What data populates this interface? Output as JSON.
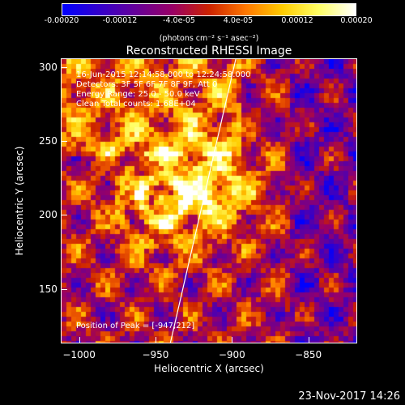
{
  "colorbar": {
    "ticks": [
      "-0.00020",
      "-0.00012",
      "-4.0e-05",
      "4.0e-05",
      "0.00012",
      "0.00020"
    ],
    "units": "(photons cm⁻² s⁻¹ asec⁻²)",
    "colors": [
      "#0000ff",
      "#3300cc",
      "#660099",
      "#990066",
      "#cc2200",
      "#ff7700",
      "#ffcc00",
      "#ffff66",
      "#ffffff"
    ]
  },
  "annotations": {
    "time": "16-Jun-2015 12:14:58.000 to 12:24:58.000",
    "detectors": "Detectors: 3F 5F 6F 7F 8F 9F, Att 0",
    "energy": "Energy Range: 25.0 - 50.0 keV",
    "method": "Clean     Total counts: 1.68E+04",
    "peak": "Position of Peak = [-947,212]"
  },
  "footer": {
    "date": "23-Nov-2017 14:26"
  },
  "chart_data": {
    "type": "heatmap",
    "title": "Reconstructed RHESSI Image",
    "xlabel": "Heliocentric X (arcsec)",
    "ylabel": "Heliocentric Y (arcsec)",
    "xlim": [
      -1012,
      -818
    ],
    "ylim": [
      113,
      306
    ],
    "xticks": [
      -1000,
      -950,
      -900,
      -850
    ],
    "xtick_labels": [
      "−1000",
      "−950",
      "−900",
      "−850"
    ],
    "yticks": [
      150,
      200,
      250,
      300
    ],
    "ytick_labels": [
      "150",
      "200",
      "250",
      "300"
    ],
    "value_range": [
      -0.0002,
      0.0002
    ],
    "peak_position": [
      -947,
      212
    ],
    "limb_line": [
      [
        -941,
        113
      ],
      [
        -898,
        306
      ]
    ],
    "grid": false
  }
}
